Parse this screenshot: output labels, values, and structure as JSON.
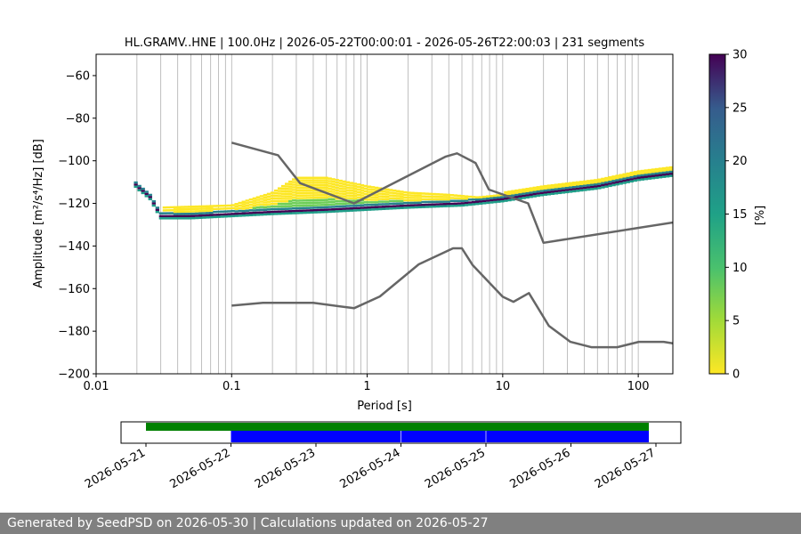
{
  "chart_data": {
    "type": "heatmap",
    "title": "HL.GRAMV..HNE | 100.0Hz | 2026-05-22T00:00:01 - 2026-05-26T22:00:03 | 231 segments",
    "xlabel": "Period [s]",
    "ylabel": "Amplitude [m²/s⁴/Hz] [dB]",
    "xscale": "log",
    "xlim": [
      0.01,
      180
    ],
    "ylim": [
      -200,
      -50
    ],
    "xticks": [
      0.01,
      0.1,
      1,
      10,
      100
    ],
    "xtick_labels": [
      "0.01",
      "0.1",
      "1",
      "10",
      "100"
    ],
    "yticks": [
      -60,
      -80,
      -100,
      -120,
      -140,
      -160,
      -180,
      -200
    ],
    "ytick_labels": [
      "−60",
      "−80",
      "−100",
      "−120",
      "−140",
      "−160",
      "−180",
      "−200"
    ],
    "grid": "x-major-and-minor",
    "colorbar": {
      "label": "[%]",
      "range": [
        0,
        30
      ],
      "ticks": [
        0,
        5,
        10,
        15,
        20,
        25,
        30
      ],
      "tick_labels": [
        "0",
        "5",
        "10",
        "15",
        "20",
        "25",
        "30"
      ],
      "colormap": "viridis_r"
    },
    "mode_curve": {
      "name": "PSD mode",
      "x": [
        0.019,
        0.02,
        0.022,
        0.025,
        0.03,
        0.05,
        0.1,
        0.2,
        0.5,
        1,
        2,
        5,
        10,
        20,
        50,
        100,
        180
      ],
      "y": [
        -110,
        -112,
        -114,
        -117,
        -126,
        -126,
        -125,
        -124,
        -123,
        -122,
        -121,
        -120,
        -118,
        -115,
        -112,
        -108,
        -106
      ]
    },
    "spread_upper": {
      "x": [
        0.03,
        0.1,
        0.2,
        0.3,
        0.5,
        1,
        2,
        4,
        6,
        10
      ],
      "y": [
        -122,
        -121,
        -115,
        -108,
        -108,
        -112,
        -115,
        -116,
        -117,
        -118
      ]
    },
    "noise_models": [
      {
        "kind": "high",
        "x": [
          0.1,
          0.22,
          0.32,
          0.8,
          3.8,
          4.6,
          6.3,
          7.9,
          15.4,
          20,
          354.8
        ],
        "y": [
          -91.5,
          -97.4,
          -110.5,
          -120,
          -98,
          -96.5,
          -101,
          -113.5,
          -120,
          -138.5,
          -126
        ]
      },
      {
        "kind": "low",
        "x": [
          0.1,
          0.17,
          0.4,
          0.8,
          1.24,
          2.4,
          4.3,
          5,
          6,
          10,
          12,
          15.6,
          21.9,
          31.6,
          45,
          70,
          101,
          154,
          180
        ],
        "y": [
          -168,
          -166.7,
          -166.7,
          -169.2,
          -163.7,
          -148.6,
          -141.1,
          -141.1,
          -149,
          -163.8,
          -166.2,
          -162.1,
          -177.5,
          -185,
          -187.5,
          -187.5,
          -185,
          -185,
          -185.7
        ]
      }
    ],
    "timeline": {
      "date_ticks": [
        "2026-05-21",
        "2026-05-22",
        "2026-05-23",
        "2026-05-24",
        "2026-05-25",
        "2026-05-26",
        "2026-05-27"
      ],
      "data_span": {
        "start": "2026-05-21",
        "end": "2026-05-26T22:00:00",
        "color": "#008000"
      },
      "psd_segments": [
        {
          "start": "2026-05-22",
          "end": "2026-05-23T23:55:00",
          "color": "#0000ff"
        },
        {
          "start": "2026-05-24T00:05:00",
          "end": "2026-05-24T23:55:00",
          "color": "#0000ff"
        },
        {
          "start": "2026-05-25T00:05:00",
          "end": "2026-05-26T22:00:00",
          "color": "#0000ff"
        }
      ]
    }
  },
  "footer": {
    "text": "Generated by SeedPSD on 2026-05-30 | Calculations updated on 2026-05-27"
  }
}
